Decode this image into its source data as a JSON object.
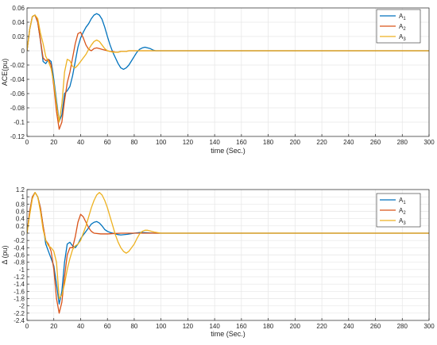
{
  "chart_data": [
    {
      "type": "line",
      "title": "",
      "xlabel": "time (Sec.)",
      "ylabel": "ACE(pu)",
      "xlim": [
        0,
        300
      ],
      "ylim": [
        -0.12,
        0.06
      ],
      "xticks": [
        0,
        20,
        40,
        60,
        80,
        100,
        120,
        140,
        160,
        180,
        200,
        220,
        240,
        260,
        280,
        300
      ],
      "yticks": [
        -0.12,
        -0.1,
        -0.08,
        -0.06,
        -0.04,
        -0.02,
        0,
        0.02,
        0.04,
        0.06
      ],
      "yticklabels": [
        "-0.12",
        "-0.1",
        "-0.08",
        "-0.06",
        "-0.04",
        "-0.02",
        "0",
        "0.02",
        "0.04",
        "0.06"
      ],
      "grid": true,
      "legend": "top-right",
      "series": [
        {
          "name": "A",
          "sub": "1",
          "color": "#0072BD",
          "x": [
            0,
            2,
            4,
            6,
            8,
            10,
            12,
            14,
            16,
            18,
            20,
            22,
            24,
            26,
            28,
            30,
            32,
            34,
            36,
            38,
            40,
            42,
            44,
            46,
            48,
            50,
            52,
            54,
            56,
            58,
            60,
            62,
            64,
            66,
            68,
            70,
            72,
            74,
            76,
            78,
            80,
            82,
            84,
            86,
            88,
            90,
            92,
            94,
            96,
            98,
            100,
            105,
            110,
            120,
            300
          ],
          "y": [
            0,
            0.03,
            0.048,
            0.05,
            0.04,
            0.015,
            -0.015,
            -0.018,
            -0.012,
            -0.015,
            -0.04,
            -0.07,
            -0.099,
            -0.09,
            -0.06,
            -0.056,
            -0.05,
            -0.035,
            -0.015,
            0.005,
            0.018,
            0.026,
            0.033,
            0.038,
            0.045,
            0.05,
            0.052,
            0.05,
            0.044,
            0.033,
            0.02,
            0.008,
            -0.002,
            -0.01,
            -0.018,
            -0.024,
            -0.026,
            -0.024,
            -0.02,
            -0.014,
            -0.008,
            -0.002,
            0.002,
            0.004,
            0.005,
            0.004,
            0.003,
            0.001,
            0,
            0,
            0,
            0,
            0,
            0,
            0
          ]
        },
        {
          "name": "A",
          "sub": "2",
          "color": "#D95319",
          "x": [
            0,
            2,
            4,
            6,
            8,
            10,
            12,
            14,
            16,
            18,
            20,
            22,
            24,
            26,
            28,
            30,
            32,
            34,
            36,
            38,
            40,
            42,
            44,
            46,
            48,
            50,
            52,
            54,
            56,
            58,
            60,
            62,
            64,
            66,
            68,
            70,
            72,
            74,
            76,
            78,
            80,
            85,
            90,
            100,
            300
          ],
          "y": [
            0,
            0.03,
            0.048,
            0.05,
            0.04,
            0.015,
            -0.01,
            -0.014,
            -0.012,
            -0.02,
            -0.05,
            -0.085,
            -0.11,
            -0.1,
            -0.07,
            -0.045,
            -0.03,
            -0.01,
            0.01,
            0.024,
            0.026,
            0.018,
            0.008,
            0.002,
            0,
            0.003,
            0.004,
            0.003,
            0.002,
            0.001,
            0,
            -0.001,
            -0.001,
            -0.002,
            -0.002,
            -0.001,
            -0.001,
            -0.001,
            0,
            0,
            0,
            0,
            0,
            0,
            0
          ]
        },
        {
          "name": "A",
          "sub": "3",
          "color": "#EDB120",
          "x": [
            0,
            2,
            4,
            6,
            8,
            10,
            12,
            14,
            16,
            18,
            20,
            22,
            24,
            26,
            28,
            30,
            32,
            34,
            36,
            38,
            40,
            42,
            44,
            46,
            48,
            50,
            52,
            54,
            56,
            58,
            60,
            62,
            64,
            66,
            68,
            70,
            72,
            74,
            76,
            78,
            80,
            82,
            84,
            86,
            88,
            90,
            95,
            100,
            300
          ],
          "y": [
            0,
            0.03,
            0.048,
            0.05,
            0.045,
            0.025,
            0.01,
            -0.008,
            -0.015,
            -0.025,
            -0.045,
            -0.075,
            -0.1,
            -0.075,
            -0.03,
            -0.012,
            -0.014,
            -0.022,
            -0.024,
            -0.02,
            -0.015,
            -0.01,
            -0.005,
            0.002,
            0.008,
            0.013,
            0.015,
            0.013,
            0.008,
            0.003,
            0,
            -0.001,
            -0.002,
            -0.002,
            -0.002,
            -0.001,
            -0.001,
            -0.001,
            0,
            0,
            0,
            0,
            0,
            0,
            0,
            0,
            0,
            0,
            0
          ]
        }
      ]
    },
    {
      "type": "line",
      "title": "",
      "xlabel": "time (Sec.)",
      "ylabel": "Δ (pu)",
      "xlim": [
        0,
        300
      ],
      "ylim": [
        -2.4,
        1.2
      ],
      "xticks": [
        0,
        20,
        40,
        60,
        80,
        100,
        120,
        140,
        160,
        180,
        200,
        220,
        240,
        260,
        280,
        300
      ],
      "yticks": [
        -2.4,
        -2.2,
        -2,
        -1.8,
        -1.6,
        -1.4,
        -1.2,
        -1,
        -0.8,
        -0.6,
        -0.4,
        -0.2,
        0,
        0.2,
        0.4,
        0.6,
        0.8,
        1,
        1.2
      ],
      "yticklabels": [
        "-2.4",
        "-2.2",
        "-2",
        "-1.8",
        "-1.6",
        "-1.4",
        "-1.2",
        "-1",
        "-0.8",
        "-0.6",
        "-0.4",
        "-0.2",
        "0",
        "0.2",
        "0.4",
        "0.6",
        "0.8",
        "1",
        "1.2"
      ],
      "grid": true,
      "legend": "top-right",
      "series": [
        {
          "name": "A",
          "sub": "1",
          "color": "#0072BD",
          "x": [
            0,
            2,
            4,
            6,
            8,
            10,
            12,
            14,
            16,
            18,
            20,
            22,
            24,
            26,
            28,
            30,
            32,
            34,
            36,
            38,
            40,
            42,
            44,
            46,
            48,
            50,
            52,
            54,
            56,
            58,
            60,
            62,
            64,
            66,
            68,
            70,
            75,
            80,
            85,
            90,
            95,
            100,
            300
          ],
          "y": [
            0,
            0.6,
            1.0,
            1.12,
            1.0,
            0.7,
            0.2,
            -0.3,
            -0.5,
            -0.7,
            -0.9,
            -1.4,
            -1.95,
            -1.6,
            -0.8,
            -0.3,
            -0.25,
            -0.35,
            -0.4,
            -0.3,
            -0.15,
            -0.05,
            0.05,
            0.15,
            0.25,
            0.3,
            0.32,
            0.28,
            0.2,
            0.1,
            0.05,
            0.02,
            0,
            -0.02,
            -0.04,
            -0.05,
            -0.03,
            0,
            0.02,
            0.01,
            0,
            0,
            0
          ]
        },
        {
          "name": "A",
          "sub": "2",
          "color": "#D95319",
          "x": [
            0,
            2,
            4,
            6,
            8,
            10,
            12,
            14,
            16,
            18,
            20,
            22,
            24,
            26,
            28,
            30,
            32,
            34,
            36,
            38,
            40,
            42,
            44,
            46,
            48,
            50,
            55,
            60,
            65,
            70,
            75,
            80,
            90,
            100,
            300
          ],
          "y": [
            0,
            0.6,
            1.0,
            1.12,
            1.0,
            0.7,
            0.2,
            -0.2,
            -0.3,
            -0.5,
            -1.0,
            -1.8,
            -2.2,
            -1.9,
            -1.2,
            -0.6,
            -0.4,
            -0.4,
            -0.1,
            0.3,
            0.52,
            0.45,
            0.3,
            0.15,
            0.05,
            0,
            -0.02,
            -0.02,
            -0.01,
            0,
            0,
            0,
            0,
            0,
            0
          ]
        },
        {
          "name": "A",
          "sub": "3",
          "color": "#EDB120",
          "x": [
            0,
            2,
            4,
            6,
            8,
            10,
            12,
            14,
            16,
            18,
            20,
            22,
            24,
            26,
            28,
            30,
            32,
            34,
            36,
            38,
            40,
            42,
            44,
            46,
            48,
            50,
            52,
            54,
            56,
            58,
            60,
            62,
            64,
            66,
            68,
            70,
            72,
            74,
            76,
            78,
            80,
            82,
            84,
            86,
            88,
            90,
            92,
            95,
            100,
            105,
            300
          ],
          "y": [
            0,
            0.5,
            0.95,
            1.12,
            1.0,
            0.6,
            0.1,
            -0.2,
            -0.35,
            -0.4,
            -0.5,
            -0.8,
            -1.8,
            -1.7,
            -1.4,
            -1.0,
            -0.7,
            -0.45,
            -0.35,
            -0.3,
            -0.2,
            0,
            0.2,
            0.45,
            0.7,
            0.9,
            1.05,
            1.12,
            1.05,
            0.9,
            0.7,
            0.45,
            0.2,
            -0.05,
            -0.25,
            -0.4,
            -0.5,
            -0.55,
            -0.5,
            -0.4,
            -0.3,
            -0.15,
            -0.02,
            0.05,
            0.08,
            0.08,
            0.06,
            0.03,
            0,
            0,
            0
          ]
        }
      ]
    }
  ]
}
